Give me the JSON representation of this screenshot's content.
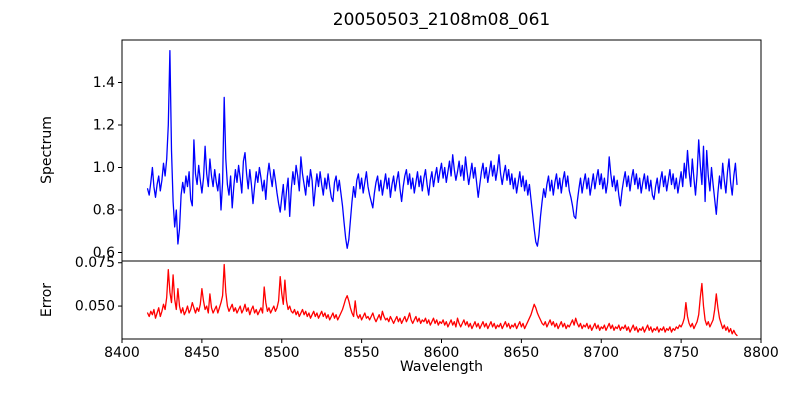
{
  "figure": {
    "background": "#ffffff",
    "frame_color": "#000000",
    "text_color": "#000000"
  },
  "chart_data": [
    {
      "type": "line",
      "title": "20050503_2108m08_061",
      "ylabel": "Spectrum",
      "xlabel": "",
      "grid": false,
      "legend": null,
      "xlim": [
        8400,
        8800
      ],
      "ylim": [
        0.56,
        1.6
      ],
      "yticks": {
        "values": [
          0.6,
          0.8,
          1.0,
          1.2,
          1.4
        ],
        "labels": [
          "0.6",
          "0.8",
          "1.0",
          "1.2",
          "1.4"
        ]
      },
      "xticks": {
        "values": [],
        "labels": []
      },
      "series": [
        {
          "name": "spectrum",
          "color": "#0000ff",
          "x_start": 8416,
          "x_step": 1.0,
          "values": [
            0.9,
            0.87,
            0.93,
            1.0,
            0.91,
            0.86,
            0.92,
            0.96,
            0.89,
            0.94,
            1.02,
            0.96,
            1.04,
            1.2,
            1.55,
            1.08,
            0.84,
            0.72,
            0.8,
            0.64,
            0.71,
            0.87,
            0.93,
            0.88,
            0.96,
            0.91,
            0.98,
            0.85,
            0.82,
            1.13,
            0.97,
            0.92,
            1.01,
            0.94,
            0.88,
            0.95,
            1.1,
            0.97,
            0.91,
            1.04,
            0.96,
            0.91,
            0.99,
            0.93,
            0.89,
            0.97,
            0.8,
            0.93,
            1.33,
            1.04,
            0.92,
            0.87,
            0.96,
            0.81,
            0.91,
            0.99,
            0.93,
            1.01,
            0.95,
            0.88,
            1.03,
            1.07,
            0.97,
            0.9,
            0.99,
            0.92,
            0.83,
            0.91,
            0.98,
            0.93,
            1.0,
            0.95,
            0.89,
            0.94,
            0.85,
            0.96,
            1.02,
            0.96,
            0.91,
            0.99,
            0.94,
            0.88,
            0.83,
            0.79,
            0.86,
            0.92,
            0.8,
            0.89,
            0.95,
            0.77,
            0.9,
            0.98,
            0.92,
            1.01,
            0.96,
            0.89,
            1.05,
            0.97,
            0.92,
            0.87,
            0.96,
            0.91,
            0.99,
            0.94,
            0.82,
            0.9,
            0.97,
            0.91,
            0.98,
            0.92,
            0.87,
            0.95,
            0.9,
            0.97,
            0.91,
            0.86,
            0.84,
            0.93,
            0.96,
            0.89,
            0.94,
            0.88,
            0.82,
            0.74,
            0.67,
            0.62,
            0.66,
            0.75,
            0.84,
            0.91,
            0.86,
            0.94,
            0.97,
            0.9,
            0.95,
            0.88,
            0.93,
            0.98,
            0.91,
            0.87,
            0.84,
            0.81,
            0.88,
            0.93,
            0.96,
            0.89,
            0.94,
            0.87,
            0.92,
            0.97,
            0.9,
            0.95,
            0.86,
            0.92,
            0.96,
            0.89,
            0.94,
            0.98,
            0.9,
            0.84,
            0.91,
            0.96,
            0.99,
            0.92,
            0.97,
            0.9,
            0.95,
            0.88,
            0.93,
            0.98,
            0.91,
            0.96,
            0.89,
            0.95,
            0.99,
            0.92,
            0.87,
            0.94,
            0.98,
            0.91,
            0.96,
            1.0,
            0.93,
            0.98,
            1.02,
            0.95,
            1.0,
            0.93,
            0.98,
            1.03,
            0.96,
            1.06,
            0.99,
            0.94,
            0.98,
            1.03,
            0.96,
            1.01,
            0.94,
            1.05,
            0.98,
            0.92,
            0.97,
            1.02,
            0.95,
            1.0,
            0.93,
            0.86,
            0.92,
            0.98,
            1.02,
            0.95,
            1.0,
            0.93,
            0.98,
            1.03,
            0.96,
            1.01,
            0.94,
            0.99,
            1.06,
            0.97,
            0.92,
            0.97,
            1.01,
            0.94,
            0.99,
            0.92,
            0.97,
            0.9,
            0.95,
            0.88,
            0.93,
            0.98,
            0.91,
            0.96,
            0.89,
            0.94,
            0.87,
            0.92,
            0.85,
            0.78,
            0.71,
            0.65,
            0.63,
            0.68,
            0.77,
            0.84,
            0.9,
            0.86,
            0.92,
            0.96,
            0.89,
            0.94,
            0.87,
            0.93,
            0.97,
            0.9,
            0.95,
            0.88,
            0.94,
            0.98,
            0.91,
            0.96,
            0.89,
            0.86,
            0.82,
            0.77,
            0.76,
            0.84,
            0.9,
            0.95,
            0.88,
            0.93,
            0.97,
            0.9,
            0.95,
            0.87,
            0.92,
            0.97,
            0.9,
            0.95,
            0.99,
            0.92,
            0.97,
            0.9,
            0.95,
            0.88,
            0.93,
            1.05,
            0.97,
            0.91,
            0.96,
            0.89,
            0.94,
            0.87,
            0.82,
            0.89,
            0.94,
            0.98,
            0.91,
            0.96,
            0.89,
            0.95,
            0.99,
            0.92,
            0.97,
            0.9,
            0.95,
            0.88,
            0.93,
            0.97,
            0.9,
            0.96,
            0.89,
            0.94,
            0.87,
            0.85,
            0.91,
            0.95,
            0.88,
            0.94,
            0.98,
            0.91,
            0.96,
            0.89,
            0.94,
            0.99,
            0.92,
            0.97,
            0.9,
            0.95,
            0.88,
            0.93,
            0.98,
            0.91,
            1.02,
            0.95,
            1.08,
            0.98,
            0.91,
            1.04,
            0.95,
            0.87,
            0.97,
            1.13,
            1.01,
            0.92,
            1.1,
            0.84,
            1.08,
            0.96,
            0.89,
            1.0,
            0.92,
            0.85,
            0.78,
            0.88,
            0.96,
            0.9,
            1.02,
            0.94,
            0.88,
            0.98,
            1.04,
            0.93,
            0.87,
            0.96,
            1.02,
            0.92
          ]
        }
      ]
    },
    {
      "type": "line",
      "title": "",
      "ylabel": "Error",
      "xlabel": "Wavelength",
      "grid": false,
      "legend": null,
      "xlim": [
        8400,
        8800
      ],
      "ylim": [
        0.031,
        0.076
      ],
      "yticks": {
        "values": [
          0.05,
          0.075
        ],
        "labels": [
          "0.050",
          "0.075"
        ]
      },
      "xticks": {
        "values": [
          8400,
          8450,
          8500,
          8550,
          8600,
          8650,
          8700,
          8750,
          8800
        ],
        "labels": [
          "8400",
          "8450",
          "8500",
          "8550",
          "8600",
          "8650",
          "8700",
          "8750",
          "8800"
        ]
      },
      "series": [
        {
          "name": "error",
          "color": "#ff0000",
          "x_start": 8416,
          "x_step": 1.0,
          "values": [
            0.046,
            0.044,
            0.047,
            0.045,
            0.048,
            0.043,
            0.046,
            0.049,
            0.044,
            0.047,
            0.051,
            0.048,
            0.055,
            0.071,
            0.058,
            0.052,
            0.068,
            0.054,
            0.048,
            0.06,
            0.05,
            0.046,
            0.049,
            0.045,
            0.047,
            0.05,
            0.046,
            0.048,
            0.052,
            0.049,
            0.046,
            0.049,
            0.047,
            0.051,
            0.06,
            0.053,
            0.048,
            0.05,
            0.046,
            0.057,
            0.049,
            0.046,
            0.048,
            0.05,
            0.046,
            0.049,
            0.052,
            0.056,
            0.074,
            0.058,
            0.05,
            0.047,
            0.049,
            0.051,
            0.047,
            0.049,
            0.046,
            0.048,
            0.05,
            0.046,
            0.048,
            0.051,
            0.047,
            0.049,
            0.045,
            0.048,
            0.05,
            0.046,
            0.048,
            0.045,
            0.047,
            0.049,
            0.046,
            0.061,
            0.052,
            0.047,
            0.049,
            0.046,
            0.048,
            0.05,
            0.047,
            0.049,
            0.053,
            0.067,
            0.057,
            0.051,
            0.065,
            0.053,
            0.048,
            0.05,
            0.047,
            0.046,
            0.048,
            0.045,
            0.047,
            0.044,
            0.046,
            0.048,
            0.045,
            0.047,
            0.044,
            0.046,
            0.043,
            0.045,
            0.047,
            0.044,
            0.046,
            0.043,
            0.045,
            0.047,
            0.044,
            0.046,
            0.043,
            0.045,
            0.042,
            0.044,
            0.046,
            0.043,
            0.045,
            0.042,
            0.044,
            0.046,
            0.048,
            0.051,
            0.054,
            0.056,
            0.053,
            0.049,
            0.046,
            0.044,
            0.053,
            0.045,
            0.043,
            0.045,
            0.042,
            0.044,
            0.046,
            0.043,
            0.044,
            0.042,
            0.044,
            0.046,
            0.043,
            0.041,
            0.043,
            0.045,
            0.042,
            0.047,
            0.044,
            0.042,
            0.043,
            0.041,
            0.044,
            0.042,
            0.04,
            0.042,
            0.044,
            0.041,
            0.043,
            0.04,
            0.042,
            0.044,
            0.041,
            0.043,
            0.046,
            0.042,
            0.04,
            0.042,
            0.044,
            0.041,
            0.043,
            0.04,
            0.042,
            0.041,
            0.043,
            0.04,
            0.042,
            0.039,
            0.041,
            0.043,
            0.04,
            0.042,
            0.039,
            0.041,
            0.04,
            0.042,
            0.039,
            0.041,
            0.038,
            0.04,
            0.042,
            0.039,
            0.041,
            0.038,
            0.043,
            0.04,
            0.038,
            0.04,
            0.042,
            0.039,
            0.041,
            0.038,
            0.04,
            0.037,
            0.039,
            0.041,
            0.038,
            0.04,
            0.037,
            0.039,
            0.041,
            0.038,
            0.04,
            0.037,
            0.039,
            0.041,
            0.038,
            0.04,
            0.037,
            0.039,
            0.038,
            0.04,
            0.037,
            0.039,
            0.041,
            0.038,
            0.04,
            0.037,
            0.039,
            0.038,
            0.04,
            0.037,
            0.039,
            0.041,
            0.038,
            0.04,
            0.037,
            0.039,
            0.041,
            0.043,
            0.045,
            0.048,
            0.051,
            0.049,
            0.046,
            0.044,
            0.042,
            0.04,
            0.039,
            0.041,
            0.038,
            0.04,
            0.042,
            0.039,
            0.041,
            0.038,
            0.04,
            0.037,
            0.039,
            0.041,
            0.038,
            0.04,
            0.037,
            0.039,
            0.038,
            0.04,
            0.042,
            0.039,
            0.043,
            0.04,
            0.038,
            0.04,
            0.037,
            0.039,
            0.038,
            0.04,
            0.037,
            0.039,
            0.036,
            0.038,
            0.04,
            0.037,
            0.039,
            0.036,
            0.038,
            0.037,
            0.039,
            0.036,
            0.038,
            0.04,
            0.037,
            0.039,
            0.036,
            0.038,
            0.037,
            0.039,
            0.036,
            0.038,
            0.037,
            0.039,
            0.036,
            0.038,
            0.035,
            0.037,
            0.039,
            0.036,
            0.038,
            0.035,
            0.037,
            0.036,
            0.038,
            0.035,
            0.037,
            0.039,
            0.036,
            0.038,
            0.035,
            0.037,
            0.036,
            0.038,
            0.035,
            0.037,
            0.036,
            0.038,
            0.035,
            0.037,
            0.036,
            0.038,
            0.035,
            0.037,
            0.036,
            0.038,
            0.037,
            0.039,
            0.038,
            0.04,
            0.043,
            0.052,
            0.044,
            0.04,
            0.038,
            0.04,
            0.037,
            0.039,
            0.041,
            0.045,
            0.055,
            0.063,
            0.05,
            0.042,
            0.039,
            0.041,
            0.038,
            0.04,
            0.042,
            0.048,
            0.057,
            0.049,
            0.043,
            0.04,
            0.037,
            0.039,
            0.036,
            0.038,
            0.035,
            0.037,
            0.034,
            0.036,
            0.034,
            0.033
          ]
        }
      ]
    }
  ]
}
